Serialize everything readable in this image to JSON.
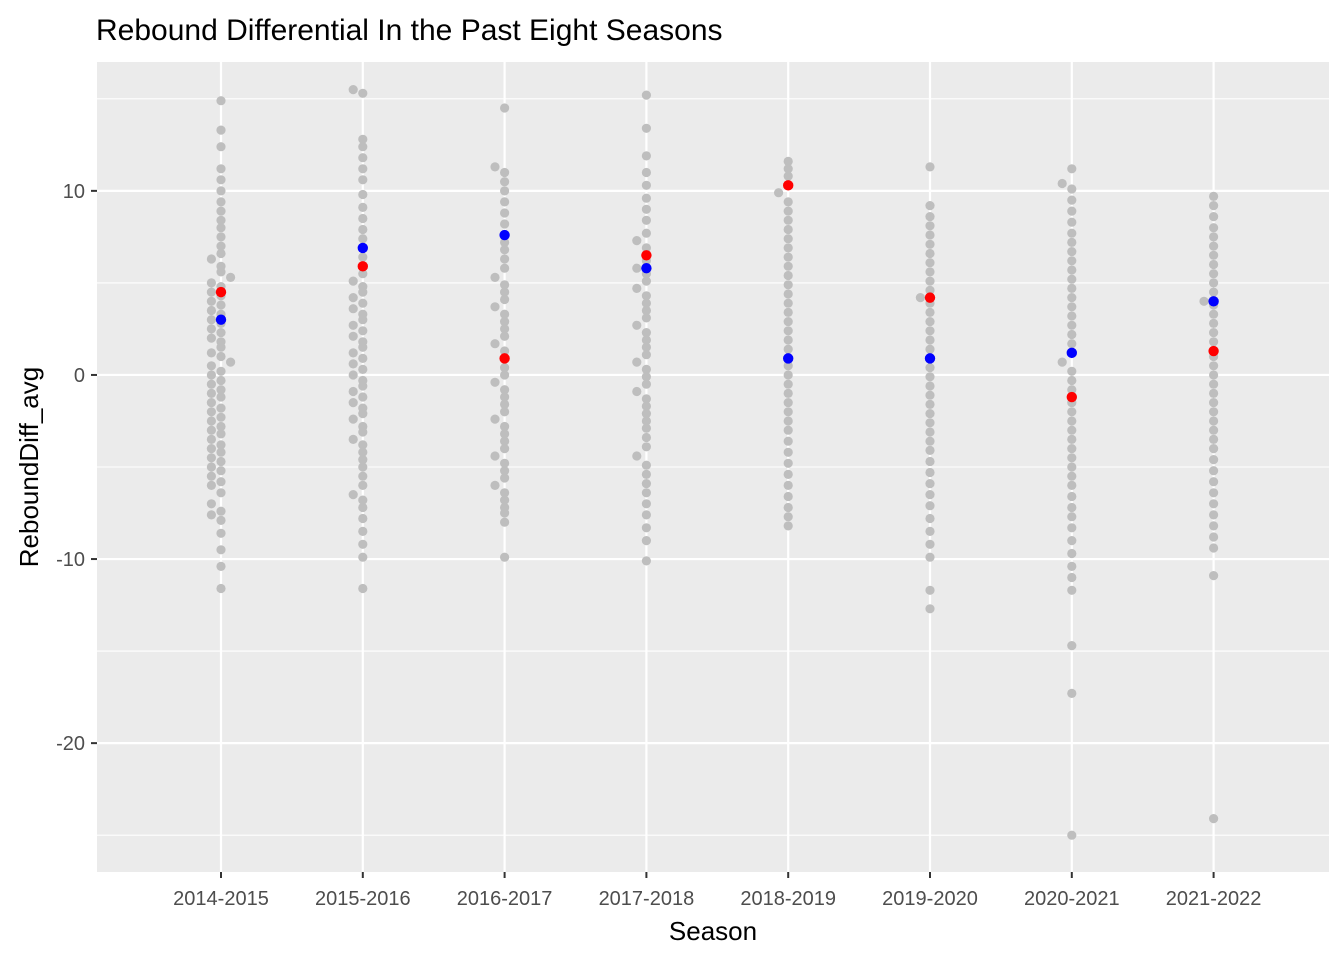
{
  "chart_data": {
    "type": "scatter",
    "subtype": "beeswarm",
    "title": "Rebound Differential In the Past Eight Seasons",
    "xlabel": "Season",
    "ylabel": "ReboundDiff_avg",
    "categories": [
      "2014-2015",
      "2015-2016",
      "2016-2017",
      "2017-2018",
      "2018-2019",
      "2019-2020",
      "2020-2021",
      "2021-2022"
    ],
    "ylim": [
      -27,
      17
    ],
    "y_ticks": [
      -20,
      -10,
      0,
      10
    ],
    "grid": true,
    "legend": "none",
    "colors": {
      "background_panel": "#ebebeb",
      "grid": "#ffffff",
      "points": "#bebebe",
      "highlight_red": "#ff0000",
      "highlight_blue": "#0000ff"
    },
    "highlights_red": [
      4.5,
      5.9,
      0.9,
      6.5,
      10.3,
      4.2,
      -1.2,
      1.3
    ],
    "highlights_blue": [
      3.0,
      6.9,
      7.6,
      5.8,
      0.9,
      0.9,
      1.2,
      4.0
    ],
    "seasons": [
      {
        "name": "2014-2015",
        "values": [
          -11.6,
          -10.4,
          -9.5,
          -8.6,
          -7.9,
          -7.6,
          -7.4,
          -7.0,
          -6.4,
          -6.0,
          -5.8,
          -5.5,
          -5.2,
          -5.0,
          -4.7,
          -4.5,
          -4.2,
          -4.0,
          -3.8,
          -3.5,
          -3.2,
          -3.0,
          -2.8,
          -2.5,
          -2.3,
          -2.0,
          -1.8,
          -1.5,
          -1.2,
          -1.0,
          -0.8,
          -0.5,
          -0.3,
          0.0,
          0.2,
          0.5,
          0.7,
          1.0,
          1.2,
          1.5,
          1.8,
          2.0,
          2.3,
          2.5,
          2.8,
          3.0,
          3.3,
          3.5,
          3.8,
          4.0,
          4.3,
          4.5,
          4.8,
          5.0,
          5.3,
          5.6,
          5.9,
          6.3,
          6.6,
          7.0,
          7.5,
          8.0,
          8.4,
          8.9,
          9.4,
          10.0,
          10.6,
          11.2,
          12.4,
          13.3,
          14.9
        ]
      },
      {
        "name": "2015-2016",
        "values": [
          -11.6,
          -9.9,
          -9.2,
          -8.5,
          -7.8,
          -7.2,
          -6.8,
          -6.5,
          -6.0,
          -5.5,
          -5.0,
          -4.6,
          -4.2,
          -3.8,
          -3.5,
          -3.1,
          -2.8,
          -2.4,
          -2.1,
          -1.8,
          -1.5,
          -1.2,
          -0.9,
          -0.6,
          -0.3,
          0.0,
          0.3,
          0.6,
          0.9,
          1.2,
          1.5,
          1.8,
          2.1,
          2.4,
          2.7,
          3.0,
          3.3,
          3.6,
          3.9,
          4.2,
          4.5,
          4.8,
          5.1,
          5.5,
          5.9,
          6.4,
          6.9,
          7.4,
          7.9,
          8.5,
          9.1,
          9.8,
          10.6,
          11.2,
          11.8,
          12.4,
          12.8,
          15.3,
          15.5
        ]
      },
      {
        "name": "2016-2017",
        "values": [
          -9.9,
          -8.0,
          -7.5,
          -7.2,
          -6.8,
          -6.4,
          -6.0,
          -5.6,
          -5.2,
          -4.8,
          -4.4,
          -4.0,
          -3.6,
          -3.2,
          -2.8,
          -2.4,
          -2.0,
          -1.6,
          -1.2,
          -0.8,
          -0.4,
          0.0,
          0.4,
          0.9,
          1.3,
          1.7,
          2.1,
          2.5,
          2.9,
          3.3,
          3.7,
          4.1,
          4.5,
          4.9,
          5.3,
          5.8,
          6.3,
          6.8,
          7.2,
          7.6,
          8.2,
          8.8,
          9.4,
          10.0,
          10.5,
          11.0,
          11.3,
          14.5
        ]
      },
      {
        "name": "2017-2018",
        "values": [
          -10.1,
          -9.0,
          -8.3,
          -7.6,
          -7.0,
          -6.4,
          -5.9,
          -5.4,
          -4.9,
          -4.4,
          -3.9,
          -3.4,
          -2.9,
          -2.5,
          -2.1,
          -1.7,
          -1.3,
          -0.9,
          -0.5,
          -0.1,
          0.3,
          0.7,
          1.1,
          1.5,
          1.9,
          2.3,
          2.7,
          3.1,
          3.5,
          3.9,
          4.3,
          4.7,
          5.1,
          5.5,
          5.8,
          6.2,
          6.5,
          6.9,
          7.3,
          7.7,
          8.4,
          9.0,
          9.6,
          10.3,
          11.0,
          11.9,
          13.4,
          15.2
        ]
      },
      {
        "name": "2018-2019",
        "values": [
          -8.2,
          -7.7,
          -7.2,
          -6.6,
          -6.0,
          -5.4,
          -4.8,
          -4.2,
          -3.6,
          -3.0,
          -2.5,
          -2.0,
          -1.5,
          -1.0,
          -0.5,
          0.0,
          0.5,
          0.9,
          1.4,
          1.9,
          2.4,
          2.9,
          3.4,
          3.9,
          4.4,
          4.9,
          5.4,
          5.9,
          6.4,
          6.9,
          7.4,
          7.9,
          8.4,
          8.9,
          9.4,
          9.9,
          10.3,
          10.8,
          11.2,
          11.6
        ]
      },
      {
        "name": "2019-2020",
        "values": [
          -12.7,
          -11.7,
          -9.9,
          -9.2,
          -8.5,
          -7.8,
          -7.1,
          -6.5,
          -5.9,
          -5.3,
          -4.7,
          -4.1,
          -3.6,
          -3.1,
          -2.6,
          -2.1,
          -1.6,
          -1.1,
          -0.6,
          -0.1,
          0.4,
          0.9,
          1.4,
          1.9,
          2.4,
          2.9,
          3.4,
          3.9,
          4.2,
          4.6,
          5.1,
          5.6,
          6.1,
          6.6,
          7.1,
          7.6,
          8.1,
          8.6,
          9.2,
          11.3
        ]
      },
      {
        "name": "2020-2021",
        "values": [
          -25.0,
          -17.3,
          -14.7,
          -11.7,
          -11.0,
          -10.4,
          -9.7,
          -9.0,
          -8.3,
          -7.7,
          -7.2,
          -6.6,
          -6.0,
          -5.5,
          -5.0,
          -4.5,
          -4.0,
          -3.5,
          -3.0,
          -2.5,
          -2.0,
          -1.5,
          -1.2,
          -0.8,
          -0.3,
          0.2,
          0.7,
          1.2,
          1.7,
          2.2,
          2.7,
          3.2,
          3.7,
          4.2,
          4.7,
          5.2,
          5.7,
          6.2,
          6.7,
          7.2,
          7.7,
          8.3,
          8.9,
          9.5,
          10.1,
          10.4,
          11.2
        ]
      },
      {
        "name": "2021-2022",
        "values": [
          -24.1,
          -10.9,
          -9.4,
          -8.8,
          -8.2,
          -7.6,
          -7.0,
          -6.4,
          -5.8,
          -5.2,
          -4.6,
          -4.0,
          -3.5,
          -3.0,
          -2.5,
          -2.0,
          -1.5,
          -1.0,
          -0.5,
          0.0,
          0.5,
          1.0,
          1.3,
          1.8,
          2.3,
          2.8,
          3.3,
          3.8,
          4.0,
          4.5,
          5.0,
          5.5,
          6.0,
          6.5,
          7.0,
          7.5,
          8.0,
          8.6,
          9.2,
          9.7
        ]
      }
    ]
  }
}
